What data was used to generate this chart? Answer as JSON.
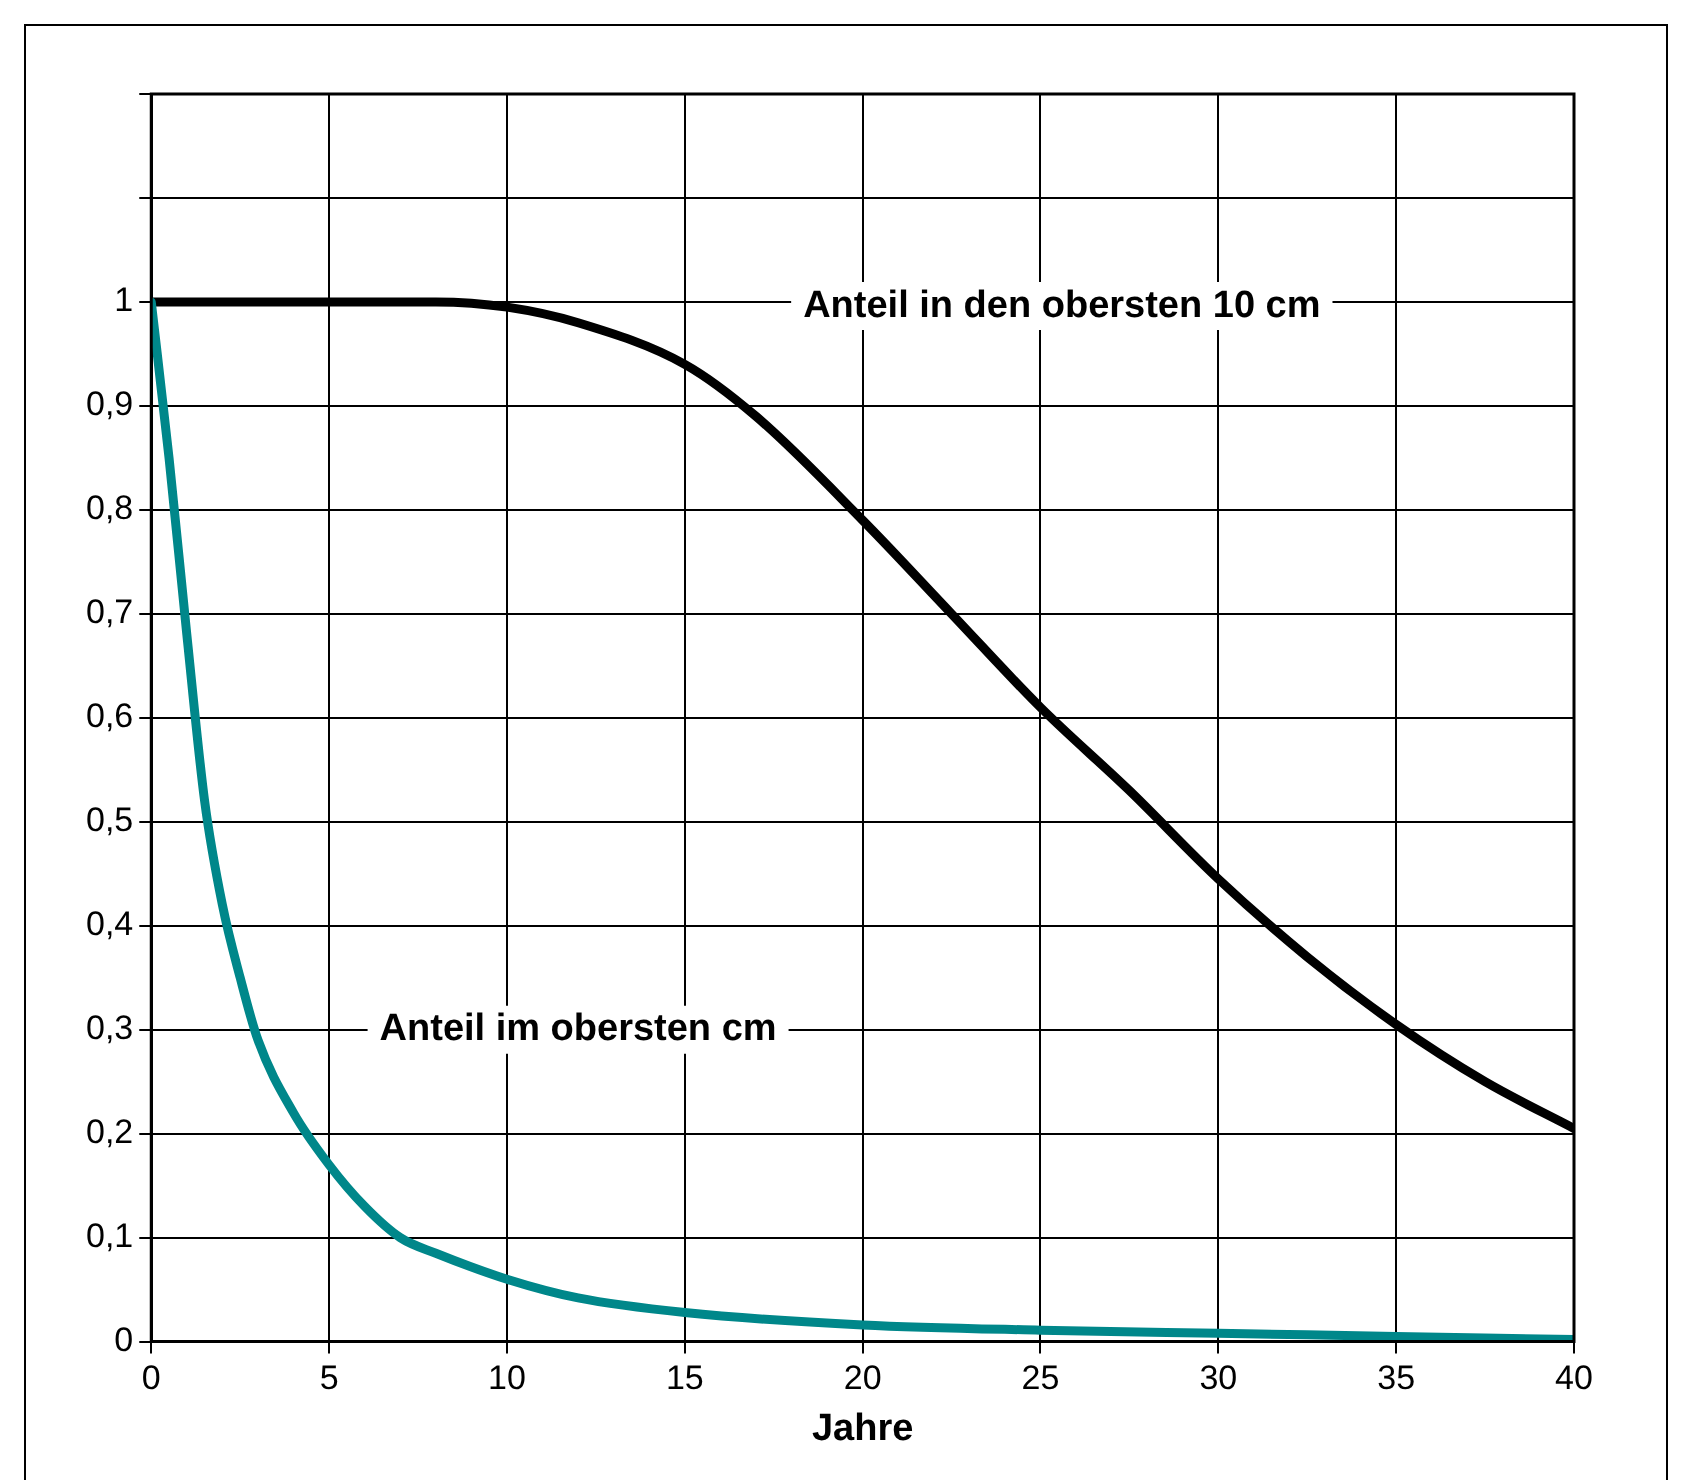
{
  "chart_data": {
    "type": "line",
    "xlabel": "Jahre",
    "xlim": [
      0,
      40
    ],
    "xticks": [
      0,
      5,
      10,
      15,
      20,
      25,
      30,
      35,
      40
    ],
    "ylim": [
      0,
      1.2
    ],
    "yticks": [
      0,
      {
        "value": 0.1,
        "label": "0,1"
      },
      {
        "value": 0.2,
        "label": "0,2"
      },
      {
        "value": 0.3,
        "label": "0,3"
      },
      {
        "value": 0.4,
        "label": "0,4"
      },
      {
        "value": 0.5,
        "label": "0,5"
      },
      {
        "value": 0.6,
        "label": "0,6"
      },
      {
        "value": 0.7,
        "label": "0,7"
      },
      {
        "value": 0.8,
        "label": "0,8"
      },
      {
        "value": 0.9,
        "label": "0,9"
      },
      1,
      {
        "value": 1.1,
        "label": null
      },
      {
        "value": 1.2,
        "label": null
      }
    ],
    "grid": true,
    "legend": false,
    "marker": "none",
    "line_style": "solid",
    "series": [
      {
        "name": "Anteil in den obersten 10 cm",
        "color": "#000000",
        "x": [
          0,
          5,
          8,
          10,
          12,
          15,
          17,
          20,
          22.5,
          25,
          27.5,
          30,
          32.5,
          35,
          37.5,
          40
        ],
        "values": [
          1.0,
          1.0,
          1.0,
          0.995,
          0.98,
          0.94,
          0.89,
          0.79,
          0.7,
          0.61,
          0.53,
          0.445,
          0.37,
          0.305,
          0.25,
          0.205
        ]
      },
      {
        "name": "Anteil im obersten cm",
        "color": "#00878a",
        "x": [
          0,
          0.5,
          1,
          1.5,
          2,
          2.5,
          3,
          4,
          5,
          6,
          7,
          8,
          10,
          12,
          15,
          20,
          25,
          30,
          35,
          40
        ],
        "values": [
          1.0,
          0.85,
          0.68,
          0.52,
          0.42,
          0.35,
          0.29,
          0.22,
          0.17,
          0.13,
          0.1,
          0.085,
          0.06,
          0.042,
          0.028,
          0.016,
          0.011,
          0.008,
          0.005,
          0.002
        ]
      }
    ]
  }
}
